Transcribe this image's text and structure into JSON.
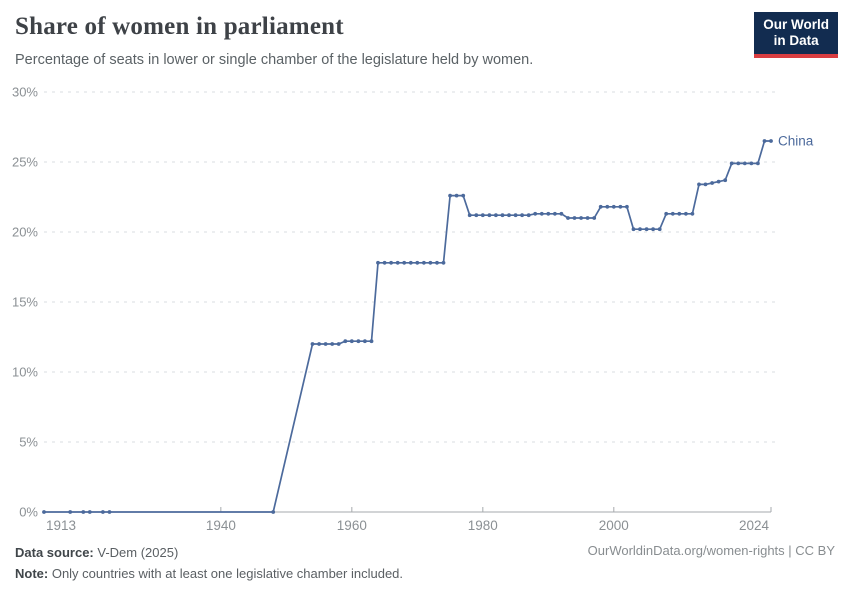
{
  "logo": {
    "line1": "Our World",
    "line2": "in Data"
  },
  "footer": {
    "source_label": "Data source:",
    "source_value": " V-Dem (2025)",
    "note_label": "Note:",
    "note_value": " Only countries with at least one legislative chamber included.",
    "right_text": "OurWorldinData.org/women-rights | CC BY"
  },
  "colors": {
    "line": "#4C6A9C",
    "grid": "#dadde0",
    "axis": "#a6aaad",
    "tick_text": "#8b9094",
    "title_text": "#3e4247",
    "subtitle_text": "#5b6266",
    "footer_text": "#5a5f63",
    "footer_bold": "#40464a",
    "footer_right": "#888d90",
    "logo_bg": "#122c50",
    "logo_red": "#d93d41"
  },
  "chart_data": {
    "type": "line",
    "title": "Share of women in parliament",
    "subtitle": "Percentage of seats in lower or single chamber of the legislature held by women.",
    "xlabel": "",
    "ylabel": "",
    "xlim": [
      1913,
      2024
    ],
    "ylim": [
      0,
      30
    ],
    "x_ticks": [
      1913,
      1940,
      1960,
      1980,
      2000,
      2024
    ],
    "y_ticks": [
      0,
      5,
      10,
      15,
      20,
      25,
      30
    ],
    "y_tick_suffix": "%",
    "grid": "horizontal-dashed",
    "legend_position": "end-of-line-label",
    "series": [
      {
        "name": "China",
        "end_label": "China",
        "color": "#4C6A9C",
        "points": [
          [
            1913,
            0
          ],
          [
            1917,
            0
          ],
          [
            1919,
            0
          ],
          [
            1920,
            0
          ],
          [
            1922,
            0
          ],
          [
            1923,
            0
          ],
          [
            1948,
            0
          ],
          [
            1954,
            12
          ],
          [
            1955,
            12
          ],
          [
            1956,
            12
          ],
          [
            1957,
            12
          ],
          [
            1958,
            12
          ],
          [
            1959,
            12.2
          ],
          [
            1960,
            12.2
          ],
          [
            1961,
            12.2
          ],
          [
            1962,
            12.2
          ],
          [
            1963,
            12.2
          ],
          [
            1964,
            17.8
          ],
          [
            1965,
            17.8
          ],
          [
            1966,
            17.8
          ],
          [
            1967,
            17.8
          ],
          [
            1968,
            17.8
          ],
          [
            1969,
            17.8
          ],
          [
            1970,
            17.8
          ],
          [
            1971,
            17.8
          ],
          [
            1972,
            17.8
          ],
          [
            1973,
            17.8
          ],
          [
            1974,
            17.8
          ],
          [
            1975,
            22.6
          ],
          [
            1976,
            22.6
          ],
          [
            1977,
            22.6
          ],
          [
            1978,
            21.2
          ],
          [
            1979,
            21.2
          ],
          [
            1980,
            21.2
          ],
          [
            1981,
            21.2
          ],
          [
            1982,
            21.2
          ],
          [
            1983,
            21.2
          ],
          [
            1984,
            21.2
          ],
          [
            1985,
            21.2
          ],
          [
            1986,
            21.2
          ],
          [
            1987,
            21.2
          ],
          [
            1988,
            21.3
          ],
          [
            1989,
            21.3
          ],
          [
            1990,
            21.3
          ],
          [
            1991,
            21.3
          ],
          [
            1992,
            21.3
          ],
          [
            1993,
            21
          ],
          [
            1994,
            21
          ],
          [
            1995,
            21
          ],
          [
            1996,
            21
          ],
          [
            1997,
            21
          ],
          [
            1998,
            21.8
          ],
          [
            1999,
            21.8
          ],
          [
            2000,
            21.8
          ],
          [
            2001,
            21.8
          ],
          [
            2002,
            21.8
          ],
          [
            2003,
            20.2
          ],
          [
            2004,
            20.2
          ],
          [
            2005,
            20.2
          ],
          [
            2006,
            20.2
          ],
          [
            2007,
            20.2
          ],
          [
            2008,
            21.3
          ],
          [
            2009,
            21.3
          ],
          [
            2010,
            21.3
          ],
          [
            2011,
            21.3
          ],
          [
            2012,
            21.3
          ],
          [
            2013,
            23.4
          ],
          [
            2014,
            23.4
          ],
          [
            2015,
            23.5
          ],
          [
            2016,
            23.6
          ],
          [
            2017,
            23.7
          ],
          [
            2018,
            24.9
          ],
          [
            2019,
            24.9
          ],
          [
            2020,
            24.9
          ],
          [
            2021,
            24.9
          ],
          [
            2022,
            24.9
          ],
          [
            2023,
            26.5
          ],
          [
            2024,
            26.5
          ]
        ]
      }
    ]
  }
}
